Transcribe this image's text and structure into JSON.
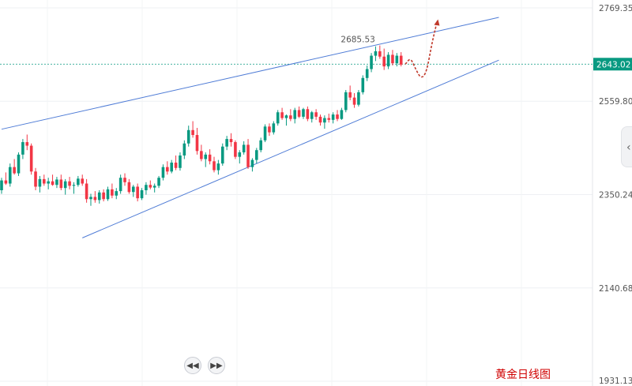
{
  "chart_data": {
    "type": "candlestick",
    "title": "黄金日线图",
    "y_axis": {
      "position": "right",
      "ticks": [
        2769.35,
        2559.8,
        2350.24,
        2140.68,
        1931.13
      ],
      "range": [
        1931.13,
        2769.35
      ]
    },
    "current_price": {
      "value": 2643.02,
      "label": "2643.02",
      "color": "#089981"
    },
    "high_label": {
      "value": 2685.53,
      "label": "2685.53"
    },
    "colors": {
      "up": "#089981",
      "down": "#f23645",
      "trendline": "#4f7cd6",
      "projection": "#c0392b"
    },
    "grid": true,
    "candles": [
      [
        2360,
        2388,
        2352,
        2382
      ],
      [
        2382,
        2400,
        2372,
        2375
      ],
      [
        2375,
        2420,
        2368,
        2412
      ],
      [
        2412,
        2430,
        2395,
        2398
      ],
      [
        2398,
        2445,
        2392,
        2440
      ],
      [
        2440,
        2475,
        2430,
        2468
      ],
      [
        2468,
        2485,
        2450,
        2460
      ],
      [
        2460,
        2465,
        2395,
        2402
      ],
      [
        2402,
        2410,
        2360,
        2368
      ],
      [
        2368,
        2392,
        2355,
        2385
      ],
      [
        2385,
        2395,
        2370,
        2375
      ],
      [
        2375,
        2388,
        2362,
        2380
      ],
      [
        2380,
        2395,
        2370,
        2372
      ],
      [
        2372,
        2390,
        2365,
        2384
      ],
      [
        2384,
        2395,
        2360,
        2365
      ],
      [
        2365,
        2385,
        2350,
        2380
      ],
      [
        2380,
        2390,
        2362,
        2370
      ],
      [
        2370,
        2378,
        2352,
        2372
      ],
      [
        2372,
        2392,
        2368,
        2386
      ],
      [
        2386,
        2395,
        2370,
        2375
      ],
      [
        2375,
        2385,
        2332,
        2340
      ],
      [
        2340,
        2352,
        2325,
        2345
      ],
      [
        2345,
        2358,
        2332,
        2338
      ],
      [
        2338,
        2360,
        2330,
        2355
      ],
      [
        2355,
        2362,
        2335,
        2340
      ],
      [
        2340,
        2368,
        2336,
        2362
      ],
      [
        2362,
        2375,
        2342,
        2348
      ],
      [
        2348,
        2365,
        2340,
        2358
      ],
      [
        2358,
        2395,
        2352,
        2388
      ],
      [
        2388,
        2398,
        2370,
        2378
      ],
      [
        2378,
        2385,
        2352,
        2356
      ],
      [
        2356,
        2372,
        2345,
        2368
      ],
      [
        2368,
        2375,
        2335,
        2342
      ],
      [
        2342,
        2365,
        2338,
        2360
      ],
      [
        2360,
        2378,
        2350,
        2372
      ],
      [
        2372,
        2382,
        2362,
        2366
      ],
      [
        2366,
        2375,
        2355,
        2370
      ],
      [
        2370,
        2392,
        2365,
        2388
      ],
      [
        2388,
        2418,
        2382,
        2412
      ],
      [
        2412,
        2425,
        2395,
        2402
      ],
      [
        2402,
        2428,
        2398,
        2422
      ],
      [
        2422,
        2438,
        2405,
        2410
      ],
      [
        2410,
        2445,
        2404,
        2438
      ],
      [
        2438,
        2472,
        2430,
        2465
      ],
      [
        2465,
        2505,
        2458,
        2495
      ],
      [
        2495,
        2515,
        2478,
        2484
      ],
      [
        2484,
        2500,
        2440,
        2448
      ],
      [
        2448,
        2462,
        2425,
        2430
      ],
      [
        2430,
        2445,
        2412,
        2440
      ],
      [
        2440,
        2452,
        2418,
        2425
      ],
      [
        2425,
        2435,
        2400,
        2405
      ],
      [
        2405,
        2428,
        2395,
        2420
      ],
      [
        2420,
        2465,
        2415,
        2458
      ],
      [
        2458,
        2482,
        2450,
        2475
      ],
      [
        2475,
        2488,
        2458,
        2468
      ],
      [
        2468,
        2472,
        2430,
        2435
      ],
      [
        2435,
        2450,
        2420,
        2445
      ],
      [
        2445,
        2470,
        2440,
        2462
      ],
      [
        2462,
        2475,
        2408,
        2412
      ],
      [
        2412,
        2432,
        2402,
        2428
      ],
      [
        2428,
        2455,
        2420,
        2450
      ],
      [
        2450,
        2478,
        2445,
        2472
      ],
      [
        2472,
        2508,
        2468,
        2503
      ],
      [
        2503,
        2510,
        2482,
        2490
      ],
      [
        2490,
        2515,
        2485,
        2510
      ],
      [
        2510,
        2540,
        2505,
        2535
      ],
      [
        2535,
        2545,
        2518,
        2522
      ],
      [
        2522,
        2530,
        2505,
        2528
      ],
      [
        2528,
        2542,
        2515,
        2520
      ],
      [
        2520,
        2545,
        2510,
        2540
      ],
      [
        2540,
        2548,
        2522,
        2525
      ],
      [
        2525,
        2545,
        2520,
        2542
      ],
      [
        2542,
        2548,
        2515,
        2520
      ],
      [
        2520,
        2538,
        2512,
        2535
      ],
      [
        2535,
        2542,
        2518,
        2525
      ],
      [
        2525,
        2530,
        2505,
        2512
      ],
      [
        2512,
        2528,
        2498,
        2522
      ],
      [
        2522,
        2532,
        2512,
        2518
      ],
      [
        2518,
        2535,
        2510,
        2530
      ],
      [
        2530,
        2540,
        2515,
        2520
      ],
      [
        2520,
        2545,
        2518,
        2540
      ],
      [
        2540,
        2585,
        2535,
        2580
      ],
      [
        2580,
        2595,
        2562,
        2568
      ],
      [
        2568,
        2578,
        2545,
        2552
      ],
      [
        2552,
        2585,
        2548,
        2580
      ],
      [
        2580,
        2618,
        2575,
        2612
      ],
      [
        2612,
        2640,
        2605,
        2632
      ],
      [
        2632,
        2668,
        2625,
        2662
      ],
      [
        2662,
        2683,
        2650,
        2672
      ],
      [
        2672,
        2685,
        2655,
        2660
      ],
      [
        2660,
        2678,
        2630,
        2638
      ],
      [
        2638,
        2670,
        2632,
        2664
      ],
      [
        2664,
        2675,
        2640,
        2645
      ],
      [
        2645,
        2668,
        2638,
        2662
      ],
      [
        2662,
        2670,
        2638,
        2642
      ]
    ],
    "trendlines": [
      {
        "name": "upper",
        "from": [
          0,
          2497
        ],
        "to": [
          117,
          2748
        ]
      },
      {
        "name": "lower",
        "from": [
          19,
          2253
        ],
        "to": [
          117,
          2652
        ]
      }
    ],
    "projection_path": [
      [
        2646,
        2643
      ],
      [
        2650,
        2658
      ],
      [
        2654,
        2630
      ],
      [
        2658,
        2610
      ],
      [
        2662,
        2625
      ],
      [
        2666,
        2690
      ],
      [
        2668,
        2740
      ]
    ]
  },
  "navigation": {
    "back_icon": "skip-back-icon",
    "forward_icon": "skip-forward-icon",
    "side_tab_icon": "chevron-left-icon"
  }
}
